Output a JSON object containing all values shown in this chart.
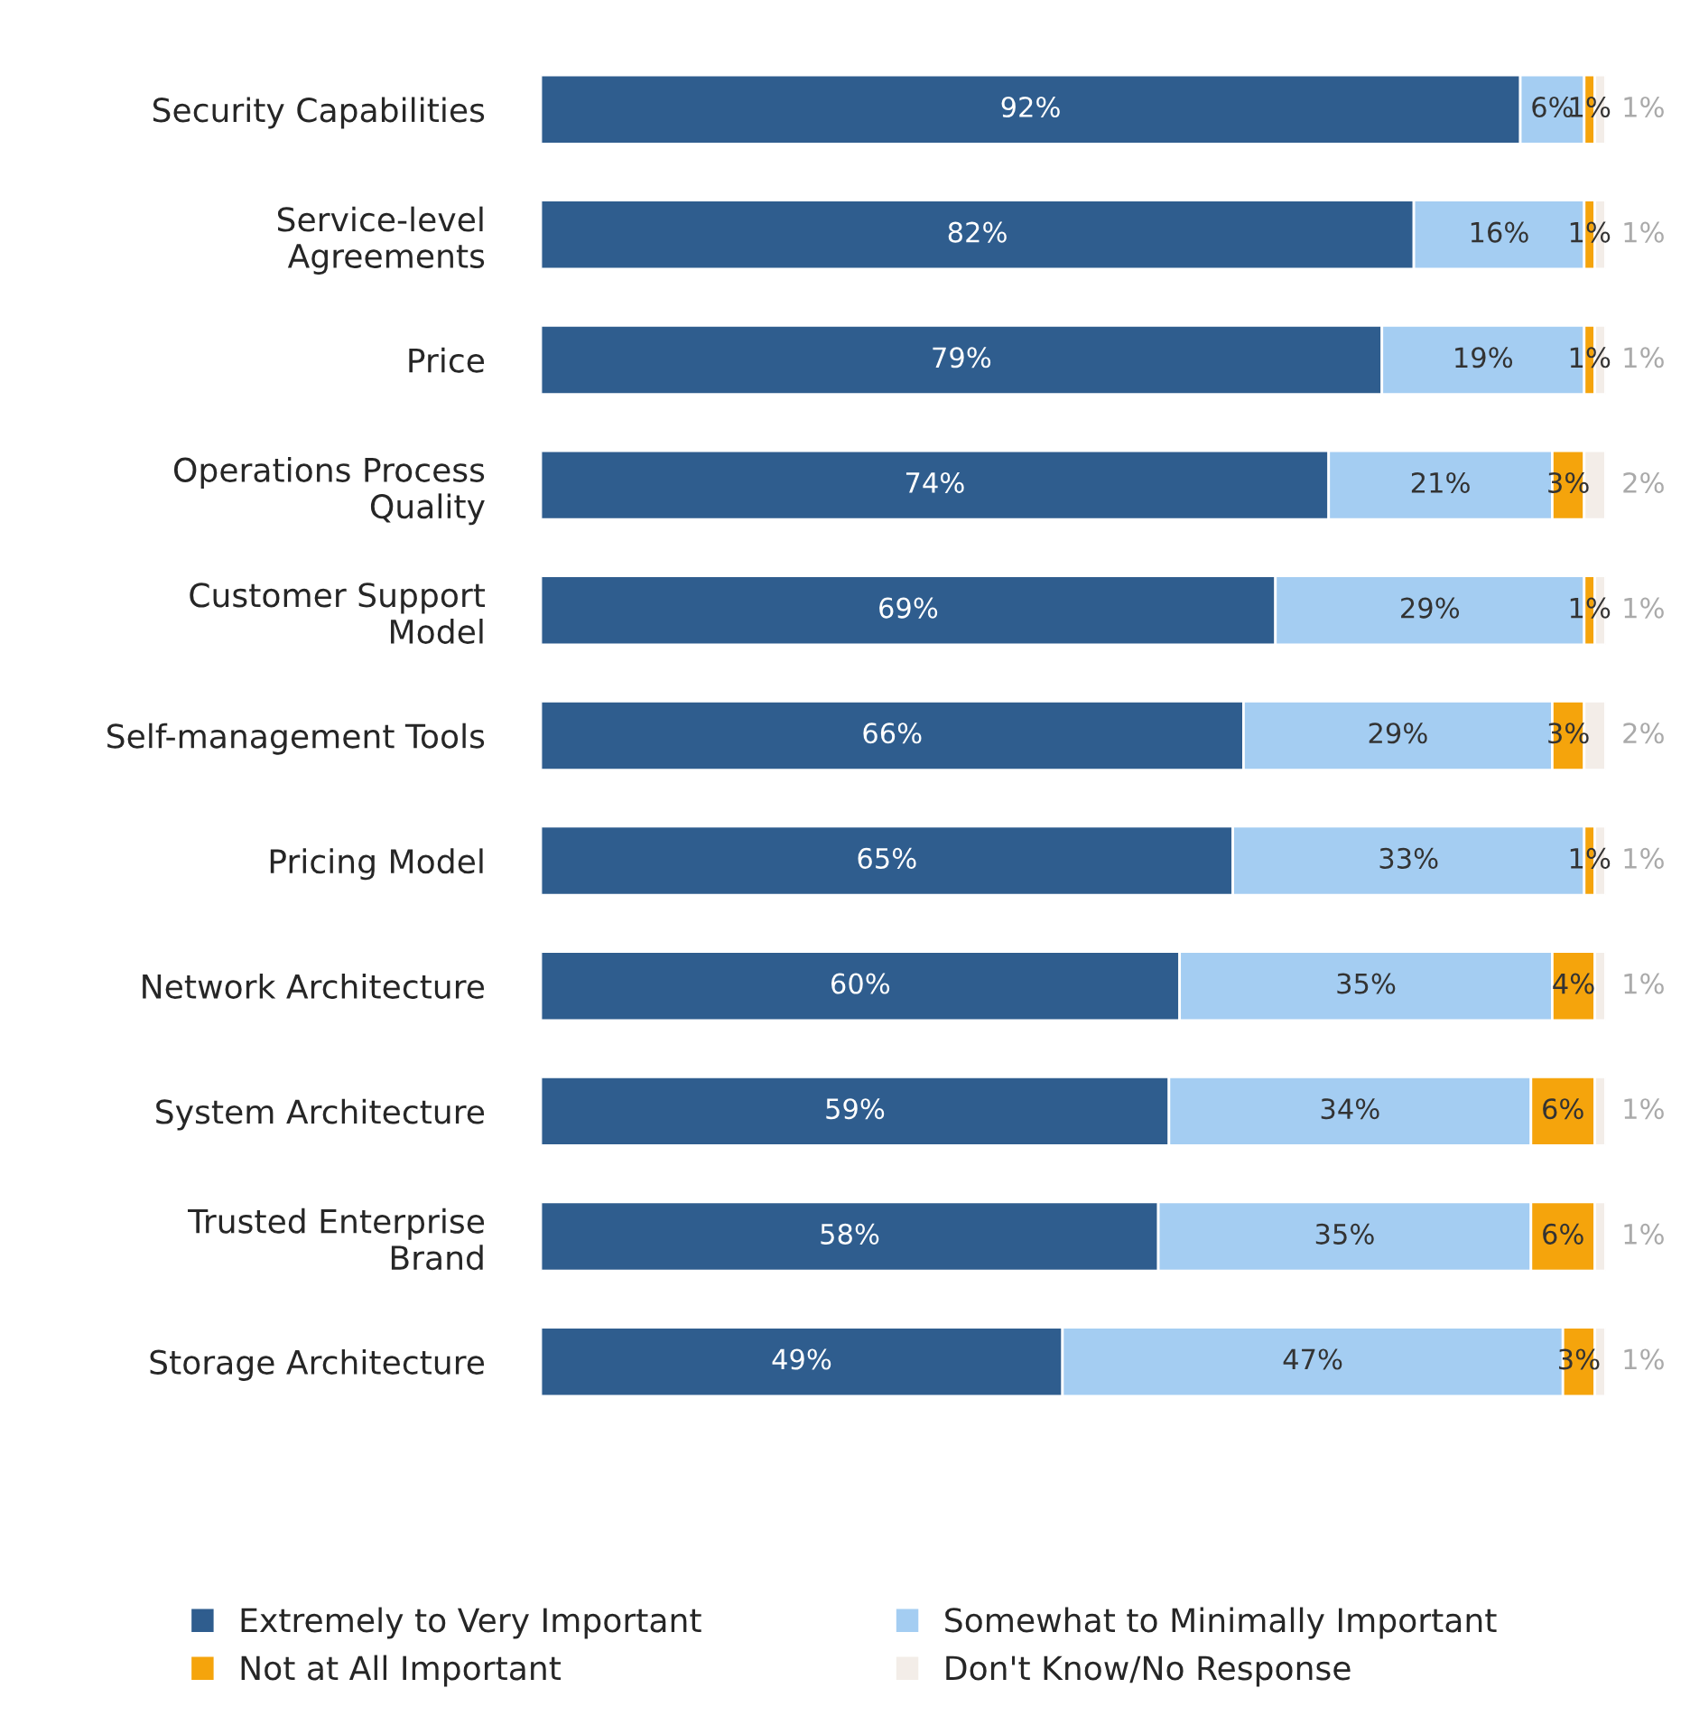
{
  "chart_data": {
    "type": "bar",
    "orientation": "horizontal",
    "stacked": true,
    "grid": false,
    "legend": "bottom",
    "categories": [
      "Security Capabilities",
      "Service-level\nAgreements",
      "Price",
      "Operations Process\nQuality",
      "Customer Support\nModel",
      "Self-management Tools",
      "Pricing Model",
      "Network Architecture",
      "System Architecture",
      "Trusted Enterprise\nBrand",
      "Storage Architecture"
    ],
    "series": [
      {
        "name": "Extremely to Very Important",
        "color": "#2f5d8e",
        "values": [
          92,
          82,
          79,
          74,
          69,
          66,
          65,
          60,
          59,
          58,
          49
        ],
        "value_labels": [
          "92%",
          "82%",
          "79%",
          "74%",
          "69%",
          "66%",
          "65%",
          "60%",
          "59%",
          "58%",
          "49%"
        ]
      },
      {
        "name": "Somewhat to Minimally Important",
        "color": "#a4cdf2",
        "values": [
          6,
          16,
          19,
          21,
          29,
          29,
          33,
          35,
          34,
          35,
          47
        ],
        "value_labels": [
          "6%",
          "16%",
          "19%",
          "21%",
          "29%",
          "29%",
          "33%",
          "35%",
          "34%",
          "35%",
          "47%"
        ]
      },
      {
        "name": "Not at All Important",
        "color": "#f5a40c",
        "values": [
          1,
          1,
          1,
          3,
          1,
          3,
          1,
          4,
          6,
          6,
          3
        ],
        "value_labels": [
          "1%",
          "1%",
          "1%",
          "3%",
          "1%",
          "3%",
          "1%",
          "4%",
          "6%",
          "6%",
          "3%"
        ]
      },
      {
        "name": "Don't Know/No Response",
        "color": "#f3ede8",
        "values": [
          1,
          1,
          1,
          2,
          1,
          2,
          1,
          1,
          1,
          1,
          1
        ],
        "value_labels": [
          "1%",
          "1%",
          "1%",
          "2%",
          "1%",
          "2%",
          "1%",
          "1%",
          "1%",
          "1%",
          "1%"
        ]
      }
    ]
  }
}
